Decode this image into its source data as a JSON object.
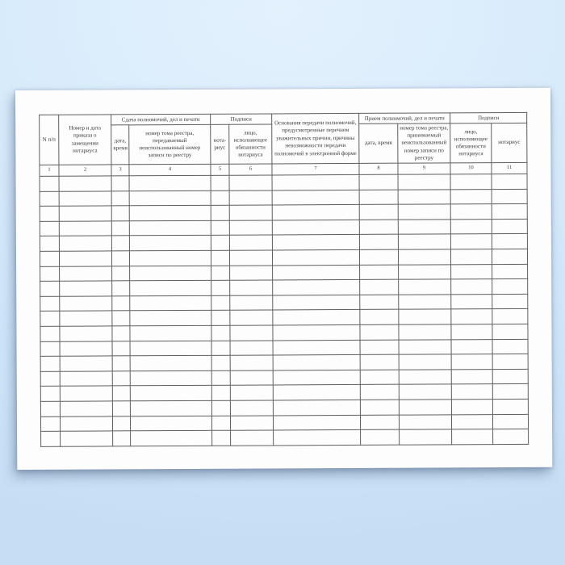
{
  "background": {
    "top_color": "#e3f1fd",
    "bottom_color": "#c6def4"
  },
  "paper": {
    "color": "#fdfdfd",
    "border_color": "#5e5e5e",
    "text_color": "#3a3a3a"
  },
  "table": {
    "group_headers": [
      {
        "label": "Сдача полномочий, дел и печати"
      },
      {
        "label": "Подписи"
      },
      {
        "label": "Прием полномочий, дел и печати"
      },
      {
        "label": "Подписи"
      }
    ],
    "columns": [
      {
        "num": "1",
        "label": "N п/п"
      },
      {
        "num": "2",
        "label": "Номер и дата приказа о замещении нотариуса"
      },
      {
        "num": "3",
        "label": "дата, время"
      },
      {
        "num": "4",
        "label": "номер тома реестра, передаваемый неиспользованный номер записи по реестру"
      },
      {
        "num": "5",
        "label": "нота-риус"
      },
      {
        "num": "6",
        "label": "лицо, исполняющее обязанности нотариуса"
      },
      {
        "num": "7",
        "label": "Основания передачи полномочий, предусмотренные перечнем уважительных причин, причины невозможности передачи полномочий в электронной форме"
      },
      {
        "num": "8",
        "label": "дата, время"
      },
      {
        "num": "9",
        "label": "номер тома реестра, принимаемый неиспользованный номер записи по реестру"
      },
      {
        "num": "10",
        "label": "лицо, исполняющее обязанности нотариуса"
      },
      {
        "num": "11",
        "label": "нотариус"
      }
    ],
    "empty_row_count": 18
  }
}
